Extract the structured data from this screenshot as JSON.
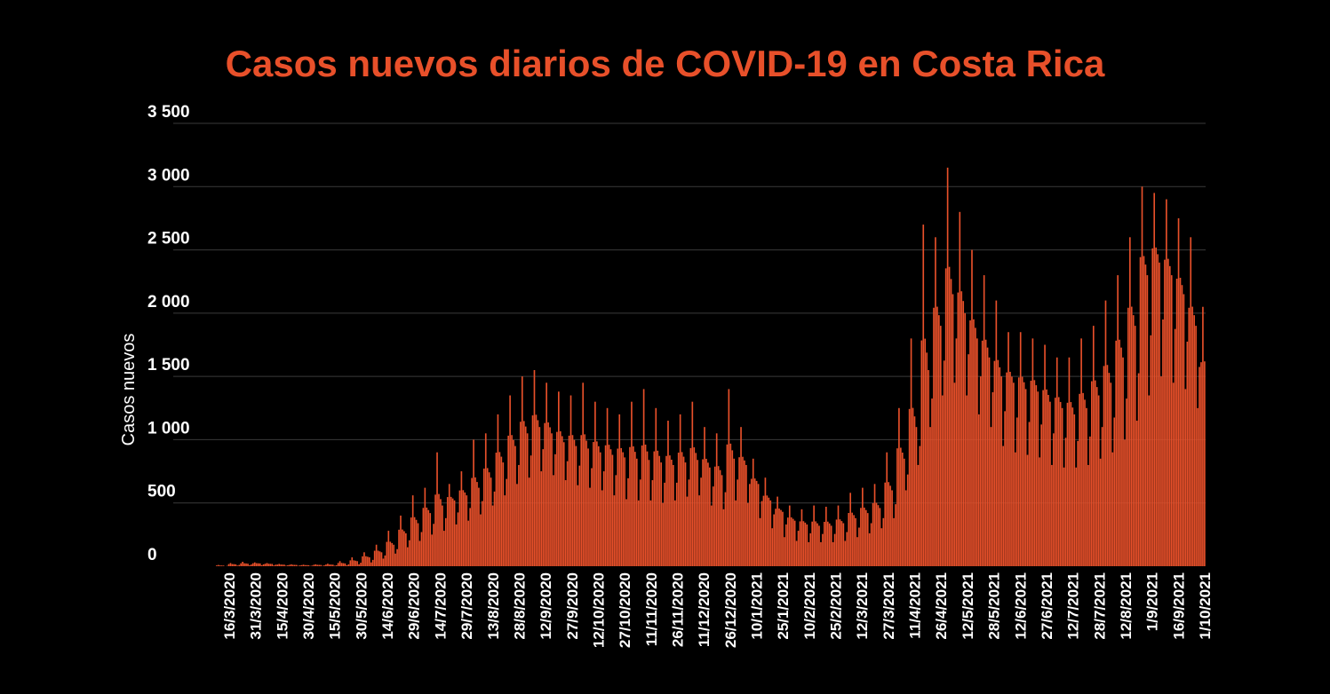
{
  "chart_data": {
    "type": "bar",
    "title": "Casos nuevos diarios de COVID-19 en Costa Rica",
    "ylabel": "Casos nuevos",
    "xlabel": "",
    "ylim": [
      0,
      3500
    ],
    "grid": true,
    "bar_color": "#e8502a",
    "title_color": "#e8502a",
    "background": "#000000",
    "y_ticks": [
      "0",
      "500",
      "1 000",
      "1 500",
      "2 000",
      "2 500",
      "3 000",
      "3 500"
    ],
    "y_tick_values": [
      0,
      500,
      1000,
      1500,
      2000,
      2500,
      3000,
      3500
    ],
    "x_ticks": [
      "16/3/2020",
      "31/3/2020",
      "15/4/2020",
      "30/4/2020",
      "15/5/2020",
      "30/5/2020",
      "14/6/2020",
      "29/6/2020",
      "14/7/2020",
      "29/7/2020",
      "13/8/2020",
      "28/8/2020",
      "12/9/2020",
      "27/9/2020",
      "12/10/2020",
      "27/10/2020",
      "11/11/2020",
      "26/11/2020",
      "11/12/2020",
      "26/12/2020",
      "10/1/2021",
      "25/1/2021",
      "10/2/2021",
      "25/2/2021",
      "12/3/2021",
      "27/3/2021",
      "11/4/2021",
      "26/4/2021",
      "12/5/2021",
      "28/5/2021",
      "12/6/2021",
      "27/6/2021",
      "12/7/2021",
      "28/7/2021",
      "12/8/2021",
      "1/9/2021",
      "16/9/2021",
      "1/10/2021"
    ],
    "weekly_x": [
      "16/3/2020",
      "23/3/2020",
      "30/3/2020",
      "6/4/2020",
      "13/4/2020",
      "20/4/2020",
      "27/4/2020",
      "4/5/2020",
      "11/5/2020",
      "18/5/2020",
      "25/5/2020",
      "1/6/2020",
      "8/6/2020",
      "15/6/2020",
      "22/6/2020",
      "29/6/2020",
      "6/7/2020",
      "13/7/2020",
      "20/7/2020",
      "27/7/2020",
      "3/8/2020",
      "10/8/2020",
      "17/8/2020",
      "24/8/2020",
      "31/8/2020",
      "7/9/2020",
      "14/9/2020",
      "21/9/2020",
      "28/9/2020",
      "5/10/2020",
      "12/10/2020",
      "19/10/2020",
      "26/10/2020",
      "2/11/2020",
      "9/11/2020",
      "16/11/2020",
      "23/11/2020",
      "30/11/2020",
      "7/12/2020",
      "14/12/2020",
      "21/12/2020",
      "28/12/2020",
      "4/1/2021",
      "11/1/2021",
      "18/1/2021",
      "25/1/2021",
      "1/2/2021",
      "8/2/2021",
      "15/2/2021",
      "22/2/2021",
      "1/3/2021",
      "8/3/2021",
      "15/3/2021",
      "22/3/2021",
      "29/3/2021",
      "5/4/2021",
      "12/4/2021",
      "19/4/2021",
      "26/4/2021",
      "3/5/2021",
      "10/5/2021",
      "17/5/2021",
      "24/5/2021",
      "31/5/2021",
      "7/6/2021",
      "14/6/2021",
      "21/6/2021",
      "28/6/2021",
      "5/7/2021",
      "12/7/2021",
      "19/7/2021",
      "26/7/2021",
      "2/8/2021",
      "9/8/2021",
      "16/8/2021",
      "23/8/2021",
      "30/8/2021",
      "6/9/2021",
      "13/9/2021",
      "20/9/2021",
      "27/9/2021",
      "4/10/2021"
    ],
    "weekly_base": [
      5,
      15,
      20,
      22,
      18,
      12,
      10,
      8,
      10,
      12,
      22,
      40,
      70,
      110,
      170,
      260,
      340,
      420,
      480,
      520,
      560,
      620,
      700,
      820,
      950,
      1050,
      1100,
      1050,
      980,
      950,
      930,
      900,
      880,
      860,
      850,
      840,
      820,
      800,
      820,
      840,
      780,
      720,
      850,
      800,
      650,
      520,
      430,
      360,
      330,
      320,
      320,
      340,
      380,
      420,
      460,
      600,
      850,
      1100,
      1550,
      1900,
      2150,
      2000,
      1800,
      1650,
      1500,
      1450,
      1400,
      1380,
      1300,
      1250,
      1200,
      1250,
      1350,
      1450,
      1650,
      1900,
      2300,
      2400,
      2300,
      2150,
      1900,
      1500
    ],
    "weekly_peak": [
      10,
      25,
      35,
      30,
      25,
      18,
      15,
      12,
      15,
      20,
      40,
      70,
      110,
      170,
      280,
      400,
      560,
      620,
      900,
      650,
      750,
      1000,
      1050,
      1200,
      1350,
      1500,
      1550,
      1450,
      1380,
      1350,
      1450,
      1300,
      1250,
      1200,
      1300,
      1400,
      1250,
      1150,
      1200,
      1300,
      1100,
      1050,
      1400,
      1100,
      850,
      700,
      550,
      480,
      450,
      480,
      470,
      480,
      580,
      620,
      650,
      900,
      1250,
      1800,
      2700,
      2600,
      3150,
      2800,
      2500,
      2300,
      2100,
      1850,
      1850,
      1800,
      1750,
      1650,
      1650,
      1800,
      1900,
      2100,
      2300,
      2600,
      3000,
      2950,
      2900,
      2750,
      2600,
      2050
    ],
    "weekly_low": [
      0,
      5,
      8,
      8,
      6,
      4,
      3,
      2,
      3,
      4,
      8,
      15,
      30,
      60,
      100,
      150,
      200,
      250,
      280,
      330,
      360,
      410,
      480,
      560,
      650,
      700,
      750,
      720,
      680,
      640,
      620,
      600,
      560,
      530,
      520,
      520,
      500,
      520,
      550,
      560,
      480,
      450,
      520,
      500,
      380,
      300,
      230,
      200,
      190,
      190,
      190,
      200,
      230,
      260,
      300,
      380,
      600,
      800,
      1100,
      1350,
      1450,
      1350,
      1200,
      1100,
      950,
      900,
      880,
      860,
      800,
      780,
      780,
      800,
      850,
      900,
      1000,
      1150,
      1350,
      1500,
      1450,
      1400,
      1250,
      1150
    ]
  }
}
